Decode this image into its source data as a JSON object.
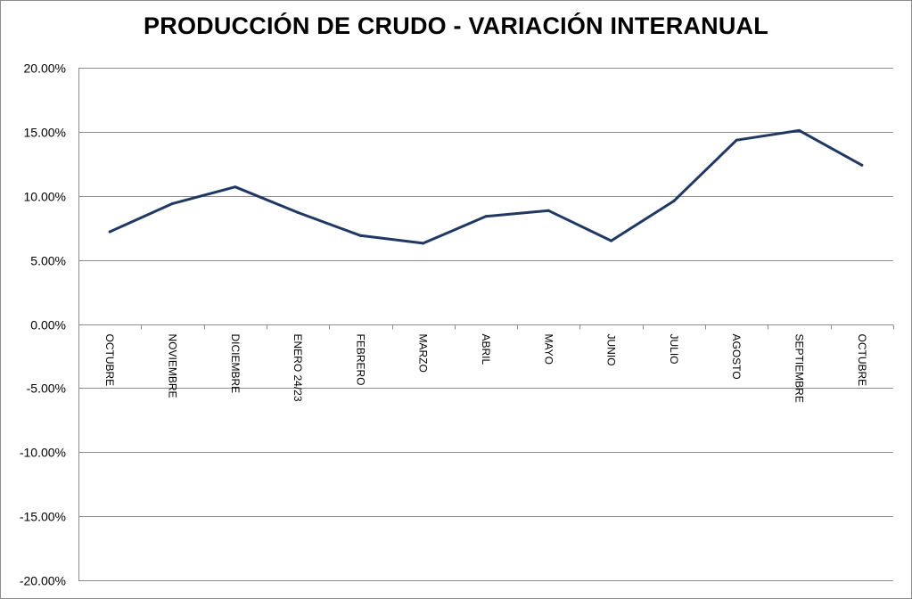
{
  "chart_data": {
    "type": "line",
    "title": "PRODUCCIÓN DE CRUDO - VARIACIÓN INTERANUAL",
    "xlabel": "",
    "ylabel": "",
    "categories": [
      "OCTUBRE",
      "NOVIEMBRE",
      "DICIEMBRE",
      "ENERO 24/23",
      "FEBRERO",
      "MARZO",
      "ABRIL",
      "MAYO",
      "JUNIO",
      "JULIO",
      "AGOSTO",
      "SEPTIEMBRE",
      "OCTUBRE"
    ],
    "series": [
      {
        "values": [
          7.2,
          9.4,
          10.7,
          8.7,
          6.9,
          6.3,
          8.4,
          8.85,
          6.5,
          9.6,
          14.35,
          15.1,
          12.4
        ],
        "color": "#1f3864"
      }
    ],
    "ylim": [
      -20,
      20
    ],
    "y_ticks": [
      "20.00%",
      "15.00%",
      "10.00%",
      "5.00%",
      "0.00%",
      "-5.00%",
      "-10.00%",
      "-15.00%",
      "-20.00%"
    ],
    "y_tick_values": [
      20,
      15,
      10,
      5,
      0,
      -5,
      -10,
      -15,
      -20
    ],
    "grid": true,
    "legend": "none"
  }
}
